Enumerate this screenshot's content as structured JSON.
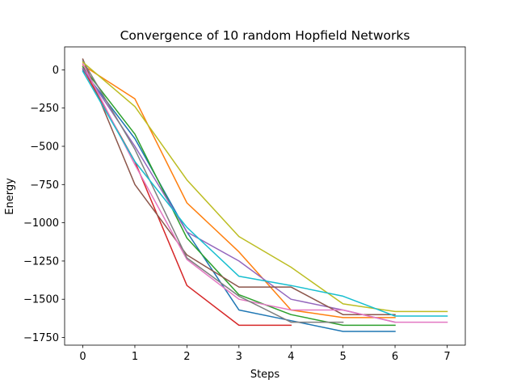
{
  "chart_data": {
    "type": "line",
    "title": "Convergence of 10 random Hopfield Networks",
    "xlabel": "Steps",
    "ylabel": "Energy",
    "xlim": [
      -0.35,
      7.35
    ],
    "ylim": [
      -1800,
      150
    ],
    "xticks": [
      0,
      1,
      2,
      3,
      4,
      5,
      6,
      7
    ],
    "yticks": [
      0,
      -250,
      -500,
      -750,
      -1000,
      -1250,
      -1500,
      -1750
    ],
    "ytick_labels": [
      "0",
      "−250",
      "−500",
      "−750",
      "−1000",
      "−1250",
      "−1500",
      "−1750"
    ],
    "grid": false,
    "series": [
      {
        "color": "#1f77b4",
        "x": [
          0,
          1,
          2,
          3,
          4,
          5,
          6
        ],
        "y": [
          0,
          -450,
          -1060,
          -1570,
          -1640,
          -1710,
          -1710
        ]
      },
      {
        "color": "#ff7f0e",
        "x": [
          0,
          1,
          2,
          3,
          4,
          5,
          6
        ],
        "y": [
          30,
          -190,
          -870,
          -1190,
          -1570,
          -1620,
          -1620
        ]
      },
      {
        "color": "#2ca02c",
        "x": [
          0,
          1,
          2,
          3,
          4,
          5,
          6
        ],
        "y": [
          20,
          -420,
          -1100,
          -1470,
          -1600,
          -1670,
          -1670
        ]
      },
      {
        "color": "#d62728",
        "x": [
          0,
          1,
          2,
          3,
          4
        ],
        "y": [
          10,
          -600,
          -1410,
          -1670,
          -1670
        ]
      },
      {
        "color": "#9467bd",
        "x": [
          0,
          1,
          2,
          3,
          4,
          5,
          6
        ],
        "y": [
          10,
          -500,
          -1060,
          -1250,
          -1500,
          -1570,
          -1650
        ]
      },
      {
        "color": "#8c564b",
        "x": [
          0,
          1,
          2,
          3,
          4,
          5,
          6
        ],
        "y": [
          70,
          -750,
          -1210,
          -1420,
          -1420,
          -1600,
          -1600
        ]
      },
      {
        "color": "#e377c2",
        "x": [
          0,
          1,
          2,
          3,
          4,
          5,
          6,
          7
        ],
        "y": [
          40,
          -620,
          -1240,
          -1500,
          -1570,
          -1570,
          -1650,
          -1650
        ]
      },
      {
        "color": "#7f7f7f",
        "x": [
          0,
          1,
          2,
          3,
          4,
          5
        ],
        "y": [
          60,
          -520,
          -1230,
          -1480,
          -1650,
          -1650
        ]
      },
      {
        "color": "#bcbd22",
        "x": [
          0,
          1,
          2,
          3,
          4,
          5,
          6,
          7
        ],
        "y": [
          50,
          -240,
          -720,
          -1090,
          -1290,
          -1530,
          -1580,
          -1580
        ]
      },
      {
        "color": "#17becf",
        "x": [
          0,
          1,
          2,
          3,
          4,
          5,
          6,
          7
        ],
        "y": [
          -10,
          -600,
          -1030,
          -1350,
          -1410,
          -1480,
          -1610,
          -1610
        ]
      }
    ]
  }
}
